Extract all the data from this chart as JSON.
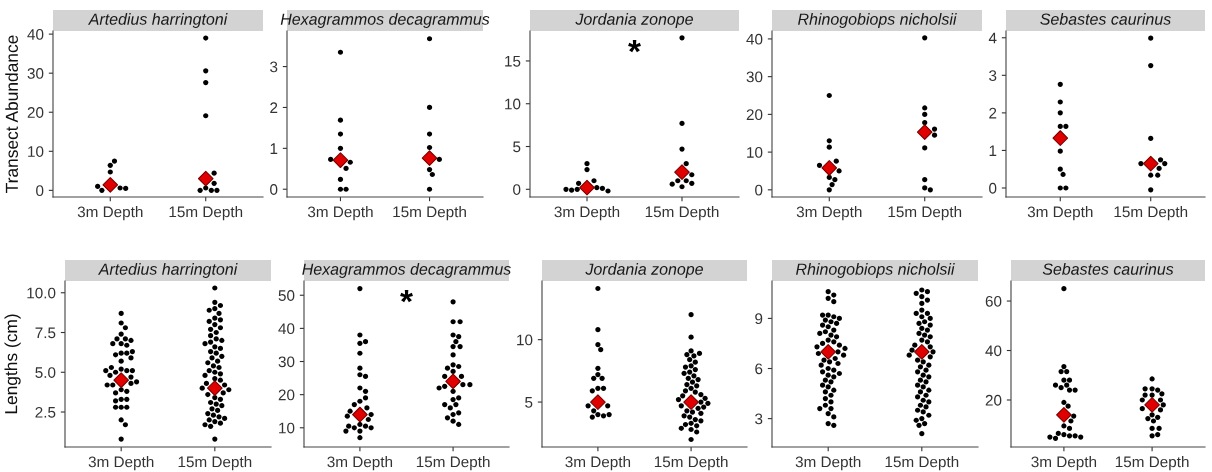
{
  "chart_data": [
    {
      "type": "scatter",
      "title": "Artedius harringtoni",
      "ylabel": "Transect Abundance",
      "categories": [
        "3m Depth",
        "15m Depth"
      ],
      "ylim": [
        -1.7,
        40.8
      ],
      "yticks": [
        0,
        10,
        20,
        30,
        40
      ],
      "series": [
        {
          "color": "#000000",
          "marker": "circle",
          "x": [
            "3m Depth",
            "3m Depth",
            "3m Depth",
            "3m Depth",
            "3m Depth",
            "3m Depth",
            "3m Depth"
          ],
          "values": [
            0.6,
            0,
            6.4,
            4.7,
            7.5,
            1.0,
            0.5
          ]
        },
        {
          "color": "#000000",
          "marker": "circle",
          "x": [
            "15m Depth",
            "15m Depth",
            "15m Depth",
            "15m Depth",
            "15m Depth",
            "15m Depth",
            "15m Depth",
            "15m Depth",
            "15m Depth",
            "15m Depth"
          ],
          "values": [
            39,
            30.6,
            27.6,
            19.1,
            4.4,
            1.8,
            0.6,
            0,
            0,
            0
          ]
        },
        {
          "color": "#e00000",
          "marker": "diamond",
          "x": [
            "3m Depth",
            "15m Depth"
          ],
          "values": [
            1.4,
            3.0
          ]
        }
      ]
    },
    {
      "type": "scatter",
      "title": "Hexagrammos decagrammus",
      "categories": [
        "3m Depth",
        "15m Depth"
      ],
      "ylim": [
        -0.19,
        3.87
      ],
      "yticks": [
        0,
        1,
        2,
        3
      ],
      "series": [
        {
          "color": "#000000",
          "marker": "circle",
          "x": [
            "3m Depth",
            "3m Depth",
            "3m Depth",
            "3m Depth",
            "3m Depth",
            "3m Depth",
            "3m Depth",
            "3m Depth",
            "3m Depth",
            "3m Depth"
          ],
          "values": [
            1.69,
            1.35,
            1.0,
            0.66,
            0.73,
            0.51,
            0.24,
            0,
            0,
            3.35
          ]
        },
        {
          "color": "#000000",
          "marker": "circle",
          "x": [
            "15m Depth",
            "15m Depth",
            "15m Depth",
            "15m Depth",
            "15m Depth",
            "15m Depth",
            "15m Depth",
            "15m Depth"
          ],
          "values": [
            2.0,
            1.35,
            1.02,
            0.73,
            0.48,
            0.36,
            0,
            3.68
          ]
        },
        {
          "color": "#e00000",
          "marker": "diamond",
          "x": [
            "3m Depth",
            "15m Depth"
          ],
          "values": [
            0.71,
            0.76
          ]
        }
      ]
    },
    {
      "type": "scatter",
      "title": "Jordania zonope",
      "categories": [
        "3m Depth",
        "15m Depth"
      ],
      "ylim": [
        -0.9,
        18.5
      ],
      "yticks": [
        0,
        5,
        10,
        15
      ],
      "annotations": [
        "*"
      ],
      "series": [
        {
          "color": "#000000",
          "marker": "circle",
          "x": [
            "3m Depth",
            "3m Depth",
            "3m Depth",
            "3m Depth",
            "3m Depth",
            "3m Depth",
            "3m Depth",
            "3m Depth",
            "3m Depth",
            "3m Depth"
          ],
          "values": [
            1.0,
            0.2,
            0,
            0.7,
            0.1,
            -0.1,
            -0.2,
            3.0,
            2.3,
            0
          ]
        },
        {
          "color": "#000000",
          "marker": "circle",
          "x": [
            "15m Depth",
            "15m Depth",
            "15m Depth",
            "15m Depth",
            "15m Depth",
            "15m Depth",
            "15m Depth",
            "15m Depth",
            "15m Depth",
            "15m Depth"
          ],
          "values": [
            17.7,
            7.7,
            4.7,
            3.0,
            1.7,
            1.0,
            0.3,
            1.0,
            0.7,
            0.6
          ]
        },
        {
          "color": "#e00000",
          "marker": "diamond",
          "x": [
            "3m Depth",
            "15m Depth"
          ],
          "values": [
            0.2,
            2.0
          ]
        }
      ]
    },
    {
      "type": "scatter",
      "title": "Rhinogobiops nicholsii",
      "categories": [
        "3m Depth",
        "15m Depth"
      ],
      "ylim": [
        -1.9,
        42.1
      ],
      "yticks": [
        0,
        10,
        20,
        30,
        40
      ],
      "series": [
        {
          "color": "#000000",
          "marker": "circle",
          "x": [
            "3m Depth",
            "3m Depth",
            "3m Depth",
            "3m Depth",
            "3m Depth",
            "3m Depth",
            "3m Depth",
            "3m Depth",
            "3m Depth",
            "3m Depth"
          ],
          "values": [
            0,
            3.3,
            5.0,
            7.6,
            11.3,
            25,
            6.5,
            1.4,
            2.7,
            13
          ]
        },
        {
          "color": "#000000",
          "marker": "circle",
          "x": [
            "15m Depth",
            "15m Depth",
            "15m Depth",
            "15m Depth",
            "15m Depth",
            "15m Depth",
            "15m Depth",
            "15m Depth",
            "15m Depth",
            "15m Depth"
          ],
          "values": [
            40.3,
            21.7,
            20,
            17.8,
            14.5,
            16.1,
            11.1,
            2.7,
            0.5,
            0
          ]
        },
        {
          "color": "#e00000",
          "marker": "diamond",
          "x": [
            "3m Depth",
            "15m Depth"
          ],
          "values": [
            5.8,
            15.3
          ]
        }
      ]
    },
    {
      "type": "scatter",
      "title": "Sebastes caurinus",
      "categories": [
        "3m Depth",
        "15m Depth"
      ],
      "ylim": [
        -0.24,
        4.18
      ],
      "yticks": [
        0,
        1,
        2,
        3,
        4
      ],
      "series": [
        {
          "color": "#000000",
          "marker": "circle",
          "x": [
            "3m Depth",
            "3m Depth",
            "3m Depth",
            "3m Depth",
            "3m Depth",
            "3m Depth",
            "3m Depth",
            "3m Depth",
            "3m Depth",
            "3m Depth"
          ],
          "values": [
            2.76,
            2.0,
            1.64,
            1.64,
            2.29,
            0.98,
            0.5,
            0.36,
            0,
            0
          ]
        },
        {
          "color": "#000000",
          "marker": "circle",
          "x": [
            "15m Depth",
            "15m Depth",
            "15m Depth",
            "15m Depth",
            "15m Depth",
            "15m Depth",
            "15m Depth",
            "15m Depth",
            "15m Depth",
            "15m Depth"
          ],
          "values": [
            3.99,
            3.26,
            1.32,
            0.75,
            0.34,
            0.34,
            -0.05,
            0.65,
            0.65,
            0.52
          ]
        },
        {
          "color": "#e00000",
          "marker": "diamond",
          "x": [
            "3m Depth",
            "15m Depth"
          ],
          "values": [
            1.33,
            0.65
          ]
        }
      ]
    },
    {
      "type": "scatter",
      "title": "Artedius harringtoni",
      "ylabel": "Lengths (cm)",
      "categories": [
        "3m Depth",
        "15m Depth"
      ],
      "ylim": [
        0.3,
        10.74
      ],
      "yticks": [
        2.5,
        {
          "value": 5,
          "label": "5.0"
        },
        7.5,
        {
          "value": 10,
          "label": "10.0"
        }
      ],
      "series": [
        {
          "color": "#000000",
          "marker": "circle",
          "x": [
            "3m Depth",
            "3m Depth",
            "3m Depth",
            "3m Depth",
            "3m Depth",
            "3m Depth",
            "3m Depth",
            "3m Depth",
            "3m Depth",
            "3m Depth",
            "3m Depth",
            "3m Depth",
            "3m Depth",
            "3m Depth",
            "3m Depth",
            "3m Depth",
            "3m Depth",
            "3m Depth",
            "3m Depth",
            "3m Depth",
            "3m Depth",
            "3m Depth",
            "3m Depth",
            "3m Depth",
            "3m Depth",
            "3m Depth",
            "3m Depth",
            "3m Depth",
            "3m Depth",
            "3m Depth",
            "3m Depth",
            "3m Depth",
            "3m Depth",
            "3m Depth",
            "3m Depth",
            "3m Depth",
            "3m Depth",
            "3m Depth",
            "3m Depth",
            "3m Depth"
          ],
          "values": [
            8.7,
            8.1,
            7.8,
            7.4,
            7.1,
            7.1,
            7.0,
            6.8,
            6.8,
            6.7,
            6.2,
            6.2,
            6.1,
            5.9,
            5.7,
            5.2,
            5.1,
            5.0,
            5.1,
            4.8,
            4.7,
            4.3,
            4.2,
            4.2,
            3.9,
            3.8,
            3.7,
            3.3,
            3.3,
            3.2,
            2.8,
            2.8,
            2.8,
            2.0,
            1.7,
            0.8,
            5.1,
            6.3,
            4.4,
            5.3
          ]
        },
        {
          "color": "#000000",
          "marker": "circle",
          "x": [
            "15m Depth",
            "15m Depth",
            "15m Depth",
            "15m Depth",
            "15m Depth",
            "15m Depth",
            "15m Depth",
            "15m Depth",
            "15m Depth",
            "15m Depth",
            "15m Depth",
            "15m Depth",
            "15m Depth",
            "15m Depth",
            "15m Depth",
            "15m Depth",
            "15m Depth",
            "15m Depth",
            "15m Depth",
            "15m Depth",
            "15m Depth",
            "15m Depth",
            "15m Depth",
            "15m Depth",
            "15m Depth",
            "15m Depth",
            "15m Depth",
            "15m Depth",
            "15m Depth",
            "15m Depth",
            "15m Depth",
            "15m Depth",
            "15m Depth",
            "15m Depth",
            "15m Depth",
            "15m Depth",
            "15m Depth",
            "15m Depth",
            "15m Depth",
            "15m Depth",
            "15m Depth",
            "15m Depth",
            "15m Depth",
            "15m Depth",
            "15m Depth",
            "15m Depth",
            "15m Depth",
            "15m Depth",
            "15m Depth",
            "15m Depth",
            "15m Depth",
            "15m Depth",
            "15m Depth",
            "15m Depth",
            "15m Depth",
            "15m Depth",
            "15m Depth"
          ],
          "values": [
            10.3,
            9.4,
            9.2,
            9.0,
            8.9,
            8.7,
            8.4,
            8.3,
            8.2,
            8.0,
            7.8,
            7.7,
            7.5,
            7.3,
            7.1,
            7.0,
            6.9,
            6.8,
            6.6,
            6.5,
            6.3,
            6.2,
            6.0,
            5.9,
            5.7,
            5.6,
            5.4,
            5.3,
            5.1,
            5.0,
            4.9,
            4.8,
            4.6,
            4.5,
            4.3,
            4.2,
            4.0,
            3.9,
            3.7,
            3.6,
            3.4,
            3.3,
            3.1,
            3.0,
            2.9,
            2.7,
            2.6,
            2.4,
            2.3,
            2.2,
            2.1,
            2.0,
            1.9,
            1.8,
            1.7,
            1.6,
            0.8
          ]
        },
        {
          "color": "#e00000",
          "marker": "diamond",
          "x": [
            "3m Depth",
            "15m Depth"
          ],
          "values": [
            4.5,
            4.0
          ]
        }
      ]
    },
    {
      "type": "scatter",
      "title": "Hexagrammos decagrammus",
      "categories": [
        "3m Depth",
        "15m Depth"
      ],
      "ylim": [
        4.2,
        54.3
      ],
      "yticks": [
        10,
        20,
        30,
        40,
        50
      ],
      "annotations": [
        "*"
      ],
      "series": [
        {
          "color": "#000000",
          "marker": "circle",
          "x": [
            "3m Depth",
            "3m Depth",
            "3m Depth",
            "3m Depth",
            "3m Depth",
            "3m Depth",
            "3m Depth",
            "3m Depth",
            "3m Depth",
            "3m Depth",
            "3m Depth",
            "3m Depth",
            "3m Depth",
            "3m Depth",
            "3m Depth",
            "3m Depth",
            "3m Depth",
            "3m Depth",
            "3m Depth",
            "3m Depth",
            "3m Depth",
            "3m Depth",
            "3m Depth",
            "3m Depth",
            "3m Depth",
            "3m Depth"
          ],
          "values": [
            52,
            38,
            35.5,
            36,
            32.5,
            28,
            26,
            25.5,
            22,
            21,
            18,
            19,
            16,
            17,
            15,
            11,
            10.5,
            10,
            10,
            9,
            12.5,
            10.5,
            9,
            7,
            14,
            13.5
          ]
        },
        {
          "color": "#000000",
          "marker": "circle",
          "x": [
            "15m Depth",
            "15m Depth",
            "15m Depth",
            "15m Depth",
            "15m Depth",
            "15m Depth",
            "15m Depth",
            "15m Depth",
            "15m Depth",
            "15m Depth",
            "15m Depth",
            "15m Depth",
            "15m Depth",
            "15m Depth",
            "15m Depth",
            "15m Depth",
            "15m Depth",
            "15m Depth",
            "15m Depth",
            "15m Depth",
            "15m Depth",
            "15m Depth",
            "15m Depth",
            "15m Depth",
            "15m Depth",
            "15m Depth",
            "15m Depth",
            "15m Depth",
            "15m Depth",
            "15m Depth"
          ],
          "values": [
            48,
            42,
            42,
            38,
            37.5,
            34.5,
            36,
            34.5,
            32,
            29,
            28.5,
            28,
            27,
            25.5,
            25.5,
            23,
            22.5,
            22,
            23,
            21,
            18.5,
            19,
            17,
            16,
            17,
            14,
            14.5,
            13,
            12,
            11
          ]
        },
        {
          "color": "#e00000",
          "marker": "diamond",
          "x": [
            "3m Depth",
            "15m Depth"
          ],
          "values": [
            14,
            24
          ]
        }
      ]
    },
    {
      "type": "scatter",
      "title": "Jordania zonope",
      "categories": [
        "3m Depth",
        "15m Depth"
      ],
      "ylim": [
        1.4,
        14.7
      ],
      "yticks": [
        5,
        10
      ],
      "series": [
        {
          "color": "#000000",
          "marker": "circle",
          "x": [
            "3m Depth",
            "3m Depth",
            "3m Depth",
            "3m Depth",
            "3m Depth",
            "3m Depth",
            "3m Depth",
            "3m Depth",
            "3m Depth",
            "3m Depth",
            "3m Depth",
            "3m Depth",
            "3m Depth",
            "3m Depth",
            "3m Depth",
            "3m Depth",
            "3m Depth",
            "3m Depth"
          ],
          "values": [
            14.1,
            10.8,
            9.6,
            9.2,
            7.7,
            7.2,
            6.9,
            6.9,
            6.1,
            6.1,
            5.9,
            4.7,
            4.7,
            4.0,
            3.9,
            3.8,
            4.0,
            4.3
          ]
        },
        {
          "color": "#000000",
          "marker": "circle",
          "x": [
            "15m Depth",
            "15m Depth",
            "15m Depth",
            "15m Depth",
            "15m Depth",
            "15m Depth",
            "15m Depth",
            "15m Depth",
            "15m Depth",
            "15m Depth",
            "15m Depth",
            "15m Depth",
            "15m Depth",
            "15m Depth",
            "15m Depth",
            "15m Depth",
            "15m Depth",
            "15m Depth",
            "15m Depth",
            "15m Depth",
            "15m Depth",
            "15m Depth",
            "15m Depth",
            "15m Depth",
            "15m Depth",
            "15m Depth",
            "15m Depth",
            "15m Depth",
            "15m Depth",
            "15m Depth",
            "15m Depth",
            "15m Depth",
            "15m Depth",
            "15m Depth",
            "15m Depth",
            "15m Depth",
            "15m Depth",
            "15m Depth",
            "15m Depth",
            "15m Depth",
            "15m Depth",
            "15m Depth",
            "15m Depth",
            "15m Depth",
            "15m Depth"
          ],
          "values": [
            12.0,
            10.2,
            9.1,
            8.7,
            8.8,
            8.9,
            8.4,
            8.2,
            7.9,
            7.8,
            7.6,
            7.4,
            7.3,
            7.1,
            6.9,
            6.8,
            6.6,
            6.4,
            6.3,
            6.1,
            5.9,
            5.8,
            5.6,
            5.5,
            5.3,
            5.2,
            5.0,
            4.9,
            4.7,
            4.6,
            4.5,
            4.3,
            4.2,
            4.1,
            3.9,
            3.8,
            3.6,
            3.5,
            3.3,
            3.2,
            3.1,
            2.9,
            2.8,
            2.6,
            2.0
          ]
        },
        {
          "color": "#e00000",
          "marker": "diamond",
          "x": [
            "3m Depth",
            "15m Depth"
          ],
          "values": [
            5.0,
            5.0
          ]
        }
      ]
    },
    {
      "type": "scatter",
      "title": "Rhinogobiops nicholsii",
      "categories": [
        "3m Depth",
        "15m Depth"
      ],
      "ylim": [
        1.3,
        11.24
      ],
      "yticks": [
        3,
        6,
        9
      ],
      "series": [
        {
          "color": "#000000",
          "marker": "circle",
          "x": [
            "3m Depth",
            "3m Depth",
            "3m Depth",
            "3m Depth",
            "3m Depth",
            "3m Depth",
            "3m Depth",
            "3m Depth",
            "3m Depth",
            "3m Depth",
            "3m Depth",
            "3m Depth",
            "3m Depth",
            "3m Depth",
            "3m Depth",
            "3m Depth",
            "3m Depth",
            "3m Depth",
            "3m Depth",
            "3m Depth",
            "3m Depth",
            "3m Depth",
            "3m Depth",
            "3m Depth",
            "3m Depth",
            "3m Depth",
            "3m Depth",
            "3m Depth",
            "3m Depth",
            "3m Depth",
            "3m Depth",
            "3m Depth",
            "3m Depth",
            "3m Depth",
            "3m Depth",
            "3m Depth",
            "3m Depth",
            "3m Depth",
            "3m Depth",
            "3m Depth",
            "3m Depth",
            "3m Depth",
            "3m Depth",
            "3m Depth",
            "3m Depth",
            "3m Depth",
            "3m Depth",
            "3m Depth",
            "3m Depth",
            "3m Depth",
            "3m Depth",
            "3m Depth",
            "3m Depth",
            "3m Depth"
          ],
          "values": [
            10.6,
            10.4,
            10.2,
            10.0,
            9.2,
            9.1,
            9.2,
            9.0,
            8.9,
            8.8,
            8.7,
            8.6,
            8.5,
            8.3,
            8.2,
            8.1,
            8.0,
            7.9,
            7.7,
            7.6,
            7.5,
            7.4,
            7.3,
            7.2,
            7.0,
            6.9,
            6.8,
            6.6,
            6.5,
            6.4,
            6.3,
            6.2,
            6.0,
            5.9,
            5.8,
            5.7,
            5.6,
            5.5,
            5.3,
            5.2,
            5.0,
            4.9,
            4.7,
            4.6,
            4.4,
            4.2,
            4.0,
            3.8,
            3.6,
            3.6,
            3.3,
            3.1,
            2.7,
            2.6
          ]
        },
        {
          "color": "#000000",
          "marker": "circle",
          "x": [
            "15m Depth",
            "15m Depth",
            "15m Depth",
            "15m Depth",
            "15m Depth",
            "15m Depth",
            "15m Depth",
            "15m Depth",
            "15m Depth",
            "15m Depth",
            "15m Depth",
            "15m Depth",
            "15m Depth",
            "15m Depth",
            "15m Depth",
            "15m Depth",
            "15m Depth",
            "15m Depth",
            "15m Depth",
            "15m Depth",
            "15m Depth",
            "15m Depth",
            "15m Depth",
            "15m Depth",
            "15m Depth",
            "15m Depth",
            "15m Depth",
            "15m Depth",
            "15m Depth",
            "15m Depth",
            "15m Depth",
            "15m Depth",
            "15m Depth",
            "15m Depth",
            "15m Depth",
            "15m Depth",
            "15m Depth",
            "15m Depth",
            "15m Depth",
            "15m Depth",
            "15m Depth",
            "15m Depth",
            "15m Depth",
            "15m Depth",
            "15m Depth",
            "15m Depth",
            "15m Depth",
            "15m Depth",
            "15m Depth",
            "15m Depth",
            "15m Depth",
            "15m Depth",
            "15m Depth",
            "15m Depth",
            "15m Depth"
          ],
          "values": [
            10.7,
            10.6,
            10.5,
            10.3,
            10.1,
            9.9,
            9.5,
            9.3,
            9.3,
            9.1,
            9.0,
            8.8,
            8.7,
            8.6,
            8.4,
            8.3,
            8.1,
            8.0,
            7.9,
            7.7,
            7.6,
            7.4,
            7.3,
            7.1,
            7.0,
            6.8,
            6.7,
            6.5,
            6.4,
            6.2,
            6.1,
            5.9,
            5.8,
            5.6,
            5.5,
            5.3,
            5.2,
            5.0,
            4.9,
            4.7,
            4.6,
            4.4,
            4.3,
            4.1,
            4.0,
            3.8,
            3.7,
            3.5,
            3.4,
            3.2,
            3.0,
            2.9,
            2.7,
            2.6,
            2.1
          ]
        },
        {
          "color": "#e00000",
          "marker": "diamond",
          "x": [
            "3m Depth",
            "15m Depth"
          ],
          "values": [
            7.0,
            7.0
          ]
        }
      ]
    },
    {
      "type": "scatter",
      "title": "Sebastes caurinus",
      "categories": [
        "3m Depth",
        "15m Depth"
      ],
      "ylim": [
        1.0,
        68.1
      ],
      "yticks": [
        20,
        40,
        60
      ],
      "series": [
        {
          "color": "#000000",
          "marker": "circle",
          "x": [
            "3m Depth",
            "3m Depth",
            "3m Depth",
            "3m Depth",
            "3m Depth",
            "3m Depth",
            "3m Depth",
            "3m Depth",
            "3m Depth",
            "3m Depth",
            "3m Depth",
            "3m Depth",
            "3m Depth",
            "3m Depth",
            "3m Depth",
            "3m Depth",
            "3m Depth",
            "3m Depth",
            "3m Depth",
            "3m Depth",
            "3m Depth",
            "3m Depth",
            "3m Depth",
            "3m Depth"
          ],
          "values": [
            65,
            33.5,
            31.5,
            31.5,
            28,
            28,
            26,
            25,
            26,
            24,
            24,
            19,
            17.5,
            13.5,
            11.5,
            9.5,
            8.5,
            6,
            5.5,
            6.5,
            5.5,
            4.5,
            5,
            5
          ]
        },
        {
          "color": "#000000",
          "marker": "circle",
          "x": [
            "15m Depth",
            "15m Depth",
            "15m Depth",
            "15m Depth",
            "15m Depth",
            "15m Depth",
            "15m Depth",
            "15m Depth",
            "15m Depth",
            "15m Depth",
            "15m Depth",
            "15m Depth",
            "15m Depth",
            "15m Depth",
            "15m Depth",
            "15m Depth",
            "15m Depth",
            "15m Depth",
            "15m Depth",
            "15m Depth"
          ],
          "values": [
            28.5,
            24.5,
            24,
            24.5,
            22,
            22.5,
            22,
            20,
            20,
            18,
            16.5,
            16,
            14,
            13,
            12.5,
            11.5,
            8.5,
            8.5,
            5.5,
            6
          ]
        },
        {
          "color": "#e00000",
          "marker": "diamond",
          "x": [
            "3m Depth",
            "15m Depth"
          ],
          "values": [
            14,
            18
          ]
        }
      ]
    }
  ]
}
